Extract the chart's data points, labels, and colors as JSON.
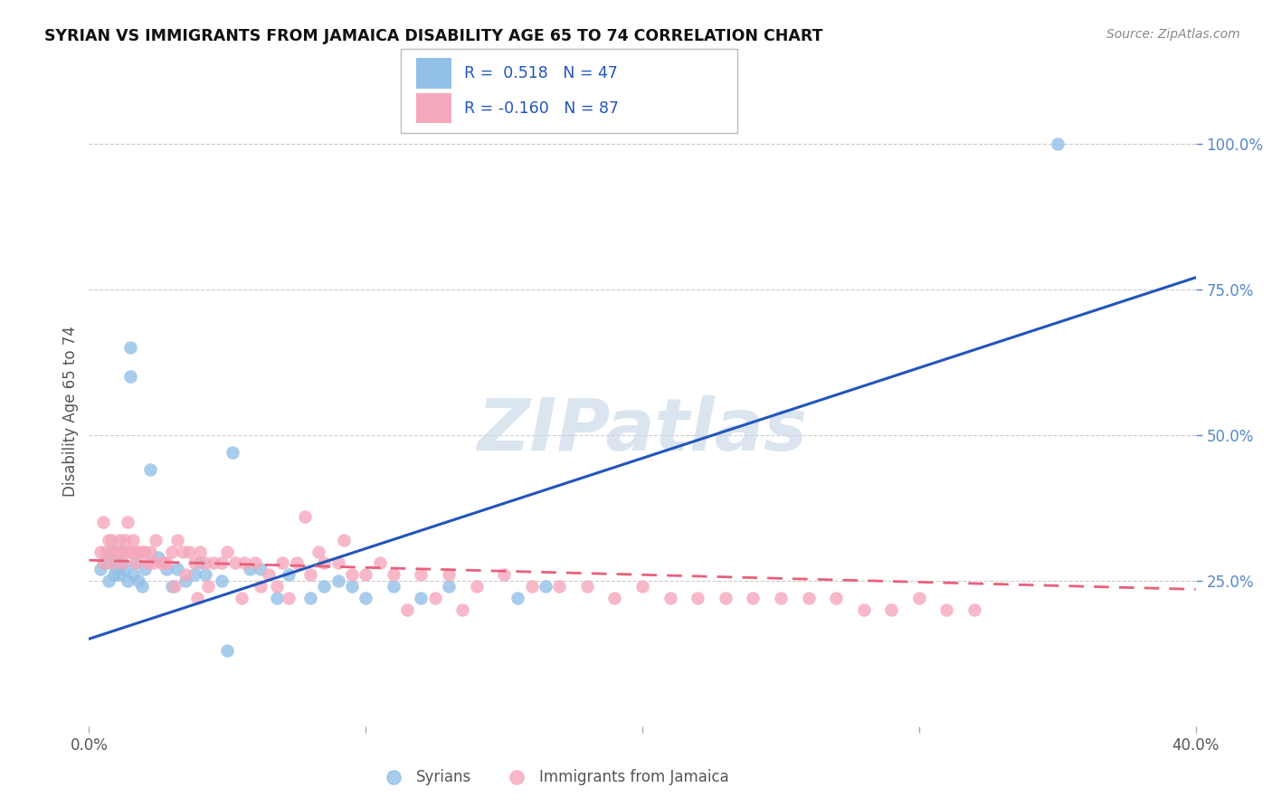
{
  "title": "SYRIAN VS IMMIGRANTS FROM JAMAICA DISABILITY AGE 65 TO 74 CORRELATION CHART",
  "source": "Source: ZipAtlas.com",
  "ylabel": "Disability Age 65 to 74",
  "xlim": [
    0.0,
    0.4
  ],
  "ylim": [
    0.0,
    1.08
  ],
  "yticks": [
    0.25,
    0.5,
    0.75,
    1.0
  ],
  "yticklabels": [
    "25.0%",
    "50.0%",
    "75.0%",
    "100.0%"
  ],
  "xticks": [
    0.0,
    0.1,
    0.2,
    0.3,
    0.4
  ],
  "xticklabels": [
    "0.0%",
    "",
    "",
    "",
    "40.0%"
  ],
  "legend1_text": "R =  0.518   N = 47",
  "legend2_text": "R = -0.160   N = 87",
  "syrians_label": "Syrians",
  "jamaica_label": "Immigrants from Jamaica",
  "syrian_color": "#92C0E8",
  "jamaica_color": "#F5A8BC",
  "blue_line_color": "#2255BB",
  "pink_line_color": "#E8607A",
  "legend_text_color": "#2255BB",
  "watermark": "ZIPatlas",
  "background_color": "#FFFFFF",
  "grid_color": "#CCCCCC",
  "tick_color": "#5588CC",
  "syrians_x": [
    0.004,
    0.006,
    0.007,
    0.008,
    0.008,
    0.009,
    0.01,
    0.01,
    0.011,
    0.012,
    0.012,
    0.013,
    0.014,
    0.015,
    0.015,
    0.016,
    0.017,
    0.018,
    0.019,
    0.02,
    0.022,
    0.025,
    0.028,
    0.03,
    0.032,
    0.035,
    0.038,
    0.04,
    0.042,
    0.048,
    0.052,
    0.058,
    0.062,
    0.068,
    0.072,
    0.08,
    0.085,
    0.09,
    0.095,
    0.1,
    0.11,
    0.12,
    0.13,
    0.155,
    0.165,
    0.35,
    0.05
  ],
  "syrians_y": [
    0.27,
    0.28,
    0.25,
    0.28,
    0.3,
    0.26,
    0.27,
    0.29,
    0.26,
    0.28,
    0.3,
    0.27,
    0.25,
    0.6,
    0.65,
    0.26,
    0.28,
    0.25,
    0.24,
    0.27,
    0.44,
    0.29,
    0.27,
    0.24,
    0.27,
    0.25,
    0.26,
    0.28,
    0.26,
    0.25,
    0.47,
    0.27,
    0.27,
    0.22,
    0.26,
    0.22,
    0.24,
    0.25,
    0.24,
    0.22,
    0.24,
    0.22,
    0.24,
    0.22,
    0.24,
    1.0,
    0.13
  ],
  "jamaica_x": [
    0.004,
    0.005,
    0.006,
    0.007,
    0.008,
    0.009,
    0.01,
    0.011,
    0.012,
    0.013,
    0.014,
    0.015,
    0.016,
    0.017,
    0.018,
    0.019,
    0.02,
    0.022,
    0.024,
    0.026,
    0.028,
    0.03,
    0.032,
    0.034,
    0.036,
    0.038,
    0.04,
    0.042,
    0.045,
    0.048,
    0.05,
    0.053,
    0.056,
    0.06,
    0.065,
    0.07,
    0.075,
    0.08,
    0.085,
    0.09,
    0.095,
    0.1,
    0.11,
    0.12,
    0.13,
    0.14,
    0.15,
    0.16,
    0.17,
    0.18,
    0.19,
    0.2,
    0.21,
    0.22,
    0.23,
    0.24,
    0.25,
    0.26,
    0.27,
    0.28,
    0.29,
    0.3,
    0.31,
    0.32,
    0.005,
    0.008,
    0.011,
    0.014,
    0.017,
    0.021,
    0.023,
    0.027,
    0.031,
    0.035,
    0.039,
    0.043,
    0.055,
    0.062,
    0.068,
    0.072,
    0.078,
    0.083,
    0.092,
    0.105,
    0.115,
    0.125,
    0.135
  ],
  "jamaica_y": [
    0.3,
    0.28,
    0.3,
    0.32,
    0.28,
    0.3,
    0.3,
    0.32,
    0.28,
    0.32,
    0.35,
    0.3,
    0.32,
    0.28,
    0.3,
    0.3,
    0.3,
    0.3,
    0.32,
    0.28,
    0.28,
    0.3,
    0.32,
    0.3,
    0.3,
    0.28,
    0.3,
    0.28,
    0.28,
    0.28,
    0.3,
    0.28,
    0.28,
    0.28,
    0.26,
    0.28,
    0.28,
    0.26,
    0.28,
    0.28,
    0.26,
    0.26,
    0.26,
    0.26,
    0.26,
    0.24,
    0.26,
    0.24,
    0.24,
    0.24,
    0.22,
    0.24,
    0.22,
    0.22,
    0.22,
    0.22,
    0.22,
    0.22,
    0.22,
    0.2,
    0.2,
    0.22,
    0.2,
    0.2,
    0.35,
    0.32,
    0.3,
    0.3,
    0.3,
    0.28,
    0.28,
    0.28,
    0.24,
    0.26,
    0.22,
    0.24,
    0.22,
    0.24,
    0.24,
    0.22,
    0.36,
    0.3,
    0.32,
    0.28,
    0.2,
    0.22,
    0.2
  ],
  "blue_line_x": [
    0.0,
    0.4
  ],
  "blue_line_y": [
    0.15,
    0.77
  ],
  "pink_line_x": [
    0.0,
    0.4
  ],
  "pink_line_y": [
    0.285,
    0.235
  ]
}
